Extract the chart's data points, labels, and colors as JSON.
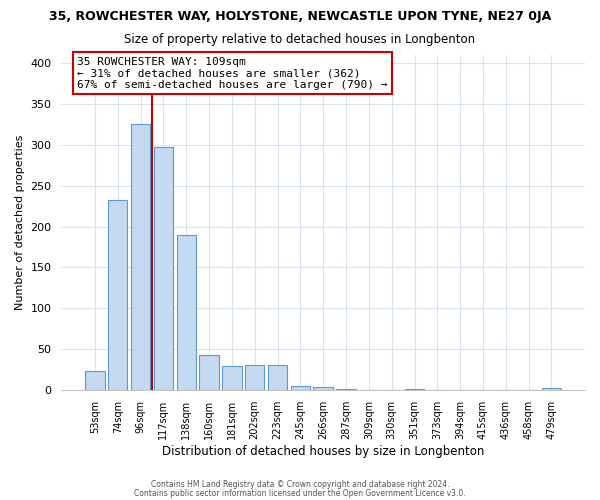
{
  "title": "35, ROWCHESTER WAY, HOLYSTONE, NEWCASTLE UPON TYNE, NE27 0JA",
  "subtitle": "Size of property relative to detached houses in Longbenton",
  "xlabel": "Distribution of detached houses by size in Longbenton",
  "ylabel": "Number of detached properties",
  "bar_labels": [
    "53sqm",
    "74sqm",
    "96sqm",
    "117sqm",
    "138sqm",
    "160sqm",
    "181sqm",
    "202sqm",
    "223sqm",
    "245sqm",
    "266sqm",
    "287sqm",
    "309sqm",
    "330sqm",
    "351sqm",
    "373sqm",
    "394sqm",
    "415sqm",
    "436sqm",
    "458sqm",
    "479sqm"
  ],
  "bar_values": [
    23,
    233,
    325,
    297,
    190,
    43,
    29,
    30,
    30,
    5,
    3,
    1,
    0,
    0,
    1,
    0,
    0,
    0,
    0,
    0,
    2
  ],
  "bar_color": "#c5d9f0",
  "bar_edge_color": "#5b9bd5",
  "annotation_title": "35 ROWCHESTER WAY: 109sqm",
  "annotation_line1": "← 31% of detached houses are smaller (362)",
  "annotation_line2": "67% of semi-detached houses are larger (790) →",
  "vline_color": "#cc0000",
  "ylim": [
    0,
    410
  ],
  "grid_color": "#d8e4f0",
  "footer1": "Contains HM Land Registry data © Crown copyright and database right 2024.",
  "footer2": "Contains public sector information licensed under the Open Government Licence v3.0."
}
